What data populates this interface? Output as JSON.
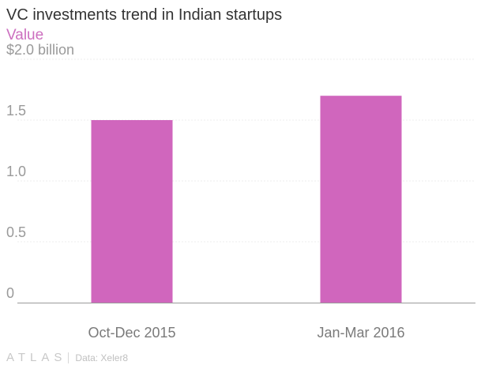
{
  "chart_data": {
    "type": "bar",
    "title": "VC investments trend in Indian startups",
    "legend": [
      "Value"
    ],
    "categories": [
      "Oct-Dec 2015",
      "Jan-Mar 2016"
    ],
    "series": [
      {
        "name": "Value",
        "values": [
          1.5,
          1.7
        ],
        "color": "#d066bd"
      }
    ],
    "ylim": [
      0,
      2.0
    ],
    "yticks": [
      0,
      0.5,
      1.0,
      1.5,
      2.0
    ],
    "ytick_labels": [
      "0",
      "0.5",
      "1.0",
      "1.5",
      "$2.0 billion"
    ],
    "grid": true,
    "legend_placement": "top-left"
  },
  "footer": {
    "logo": "ATLAS",
    "source": "Data: Xeler8"
  }
}
